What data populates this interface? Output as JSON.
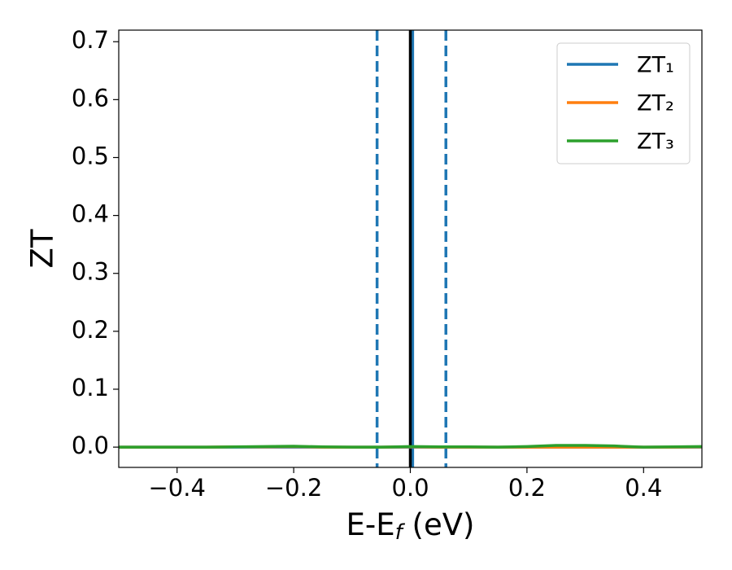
{
  "chart_data": {
    "type": "line",
    "xlabel": [
      "E-E",
      "f",
      " (eV)"
    ],
    "ylabel": "ZT",
    "x": [
      -0.5,
      -0.45,
      -0.4,
      -0.35,
      -0.3,
      -0.25,
      -0.2,
      -0.15,
      -0.1,
      -0.05,
      0,
      0.05,
      0.1,
      0.15,
      0.2,
      0.25,
      0.3,
      0.35,
      0.4,
      0.45,
      0.5
    ],
    "series": [
      {
        "name": "ZT₁",
        "color": "#1f77b4",
        "values": [
          0,
          0,
          0,
          0,
          0,
          0,
          0,
          0,
          0,
          0,
          0,
          0,
          0,
          0,
          0,
          0,
          0,
          0,
          0,
          0,
          0
        ]
      },
      {
        "name": "ZT₂",
        "color": "#ff7f0e",
        "values": [
          0,
          0,
          0,
          0,
          0.0005,
          0.0005,
          0.001,
          0,
          0,
          0,
          0.0005,
          0,
          0,
          0,
          0,
          0,
          0,
          0,
          0,
          0,
          0.0005
        ]
      },
      {
        "name": "ZT₃",
        "color": "#2ca02c",
        "values": [
          0,
          0,
          0,
          0,
          0.0005,
          0.001,
          0.0015,
          0.0005,
          0,
          0,
          0.001,
          0.0005,
          0.0005,
          0,
          0.001,
          0.003,
          0.003,
          0.002,
          0,
          0.0005,
          0.001
        ]
      }
    ],
    "vlines": [
      {
        "x": -0.057,
        "color": "#1f77b4",
        "style": "dashed"
      },
      {
        "x": 0.061,
        "color": "#1f77b4",
        "style": "dashed"
      },
      {
        "x": 0.004,
        "color": "#1f77b4",
        "style": "solid"
      },
      {
        "x": 0,
        "color": "#000000",
        "style": "solid"
      }
    ],
    "xlim": [
      -0.5,
      0.5
    ],
    "ylim": [
      -0.035,
      0.72
    ],
    "xticks": [
      {
        "value": -0.4,
        "label": "−0.4"
      },
      {
        "value": -0.2,
        "label": "−0.2"
      },
      {
        "value": 0,
        "label": "0.0"
      },
      0.2,
      0.4
    ],
    "yticks": [
      {
        "value": 0,
        "label": "0.0"
      },
      0.1,
      0.2,
      0.3,
      0.4,
      0.5,
      0.6,
      0.7
    ],
    "grid": false,
    "legend": "upper right"
  }
}
